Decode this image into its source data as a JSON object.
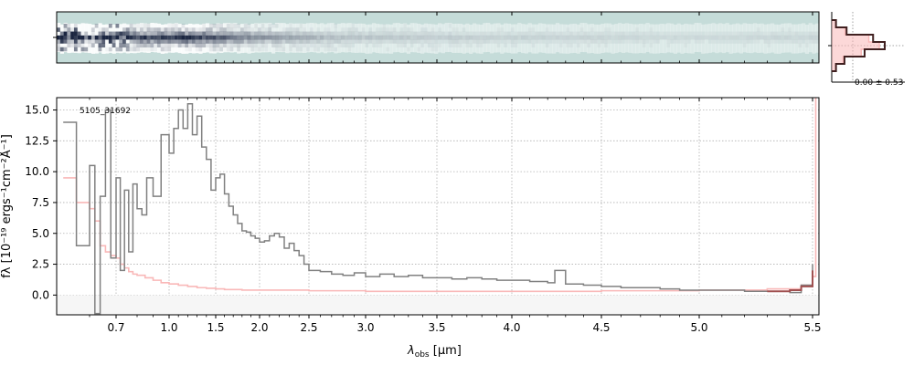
{
  "chart_data": {
    "type": "line",
    "object_id": "5105_31692",
    "xlabel_main": "λ",
    "xlabel_sub": "obs",
    "xlabel_unit": " [μm]",
    "ylabel": "fλ [10⁻¹⁹ ergs⁻¹cm⁻²Å⁻¹]",
    "x_ticks": [
      0.7,
      1.0,
      1.5,
      2.0,
      2.5,
      3.0,
      3.5,
      4.0,
      4.5,
      5.0,
      5.5
    ],
    "x_tick_labels": [
      "0.7",
      "1.0",
      "1.5",
      "2.0",
      "2.5",
      "3.0",
      "3.5",
      "4.0",
      "4.5",
      "5.0",
      "5.5"
    ],
    "x_minor_ticks": [
      0.6,
      0.8,
      0.9,
      1.1,
      1.2,
      1.3,
      1.4,
      1.6,
      1.7,
      1.8,
      1.9,
      2.1,
      2.2,
      2.3,
      2.4,
      2.6,
      2.7,
      2.8,
      2.9,
      3.1,
      3.2,
      3.3,
      3.4,
      3.6,
      3.7,
      3.8,
      3.9,
      4.1,
      4.2,
      4.3,
      4.4,
      4.6,
      4.7,
      4.8,
      4.9,
      5.1,
      5.2,
      5.3,
      5.4
    ],
    "y_ticks": [
      0.0,
      2.5,
      5.0,
      7.5,
      10.0,
      12.5,
      15.0
    ],
    "y_tick_labels": [
      "0.0",
      "2.5",
      "5.0",
      "7.5",
      "10.0",
      "12.5",
      "15.0"
    ],
    "ylim": [
      -1.6,
      16.0
    ],
    "xlim": [
      0.55,
      5.52
    ],
    "grid": true,
    "series": [
      {
        "role": "flux",
        "color": "#808080",
        "x": [
          0.56,
          0.58,
          0.6,
          0.62,
          0.64,
          0.66,
          0.68,
          0.7,
          0.72,
          0.74,
          0.76,
          0.78,
          0.8,
          0.83,
          0.86,
          0.9,
          0.95,
          1.0,
          1.05,
          1.1,
          1.15,
          1.2,
          1.25,
          1.3,
          1.35,
          1.4,
          1.45,
          1.5,
          1.55,
          1.6,
          1.65,
          1.7,
          1.75,
          1.8,
          1.85,
          1.9,
          1.95,
          2.0,
          2.05,
          2.1,
          2.15,
          2.2,
          2.25,
          2.3,
          2.35,
          2.4,
          2.45,
          2.5,
          2.6,
          2.7,
          2.8,
          2.9,
          3.0,
          3.1,
          3.2,
          3.3,
          3.4,
          3.5,
          3.6,
          3.7,
          3.8,
          3.9,
          4.0,
          4.1,
          4.2,
          4.24,
          4.3,
          4.4,
          4.5,
          4.6,
          4.7,
          4.8,
          4.9,
          5.0,
          5.1,
          5.2,
          5.3,
          5.4,
          5.45,
          5.5
        ],
        "y": [
          14.0,
          4.0,
          10.5,
          -1.5,
          8.0,
          15.0,
          3.0,
          9.5,
          2.0,
          8.5,
          3.5,
          9.0,
          7.0,
          6.5,
          9.5,
          8.0,
          13.0,
          11.5,
          13.5,
          15.0,
          13.5,
          15.5,
          13.0,
          14.5,
          12.0,
          11.0,
          8.5,
          9.5,
          9.8,
          8.2,
          7.2,
          6.5,
          5.8,
          5.2,
          5.1,
          4.8,
          4.6,
          4.3,
          4.4,
          4.8,
          5.0,
          4.7,
          3.8,
          4.2,
          3.6,
          3.2,
          2.5,
          2.0,
          1.9,
          1.7,
          1.6,
          1.8,
          1.5,
          1.7,
          1.5,
          1.6,
          1.4,
          1.4,
          1.3,
          1.4,
          1.3,
          1.2,
          1.2,
          1.1,
          1.0,
          2.0,
          0.9,
          0.8,
          0.7,
          0.6,
          0.6,
          0.5,
          0.4,
          0.4,
          0.4,
          0.3,
          0.3,
          0.2,
          0.8,
          2.5
        ]
      },
      {
        "role": "error",
        "color": "#f9b8b8",
        "x": [
          0.56,
          0.58,
          0.6,
          0.62,
          0.64,
          0.66,
          0.68,
          0.7,
          0.72,
          0.74,
          0.76,
          0.78,
          0.8,
          0.85,
          0.9,
          0.95,
          1.0,
          1.1,
          1.2,
          1.3,
          1.4,
          1.5,
          1.6,
          1.8,
          2.0,
          2.5,
          3.0,
          3.5,
          4.0,
          4.5,
          5.0,
          5.3,
          5.45,
          5.5,
          5.51
        ],
        "y": [
          9.5,
          7.5,
          7.0,
          6.0,
          4.0,
          3.5,
          3.2,
          3.0,
          2.5,
          2.2,
          1.9,
          1.7,
          1.6,
          1.4,
          1.2,
          1.0,
          0.9,
          0.8,
          0.7,
          0.6,
          0.55,
          0.5,
          0.45,
          0.4,
          0.4,
          0.35,
          0.3,
          0.3,
          0.3,
          0.35,
          0.4,
          0.5,
          0.8,
          1.5,
          16.0
        ]
      },
      {
        "role": "model",
        "color": "#a05050",
        "x": [
          5.3,
          5.4,
          5.45,
          5.5
        ],
        "y": [
          0.3,
          0.4,
          0.7,
          2.0
        ]
      }
    ],
    "spectrum_2d": {
      "background_color": "#c5dcd9",
      "trace_color": "#1a2540",
      "profile": [
        0.05,
        0.2,
        0.5,
        0.95,
        0.5,
        0.2,
        0.05
      ],
      "intensity_x": [
        0.56,
        0.7,
        1.0,
        1.2,
        1.5,
        2.0,
        2.5,
        3.0,
        4.0,
        5.0,
        5.5
      ],
      "intensity": [
        1.0,
        0.85,
        0.9,
        1.0,
        0.75,
        0.45,
        0.28,
        0.18,
        0.12,
        0.08,
        0.1
      ]
    },
    "profile_inset": {
      "label": "0.00 ± 0.53",
      "data_color": "#402020",
      "model_color": "#f9b8b8",
      "levels": [
        0.08,
        0.28,
        0.78,
        1.0,
        0.62,
        0.24,
        0.08
      ]
    }
  }
}
